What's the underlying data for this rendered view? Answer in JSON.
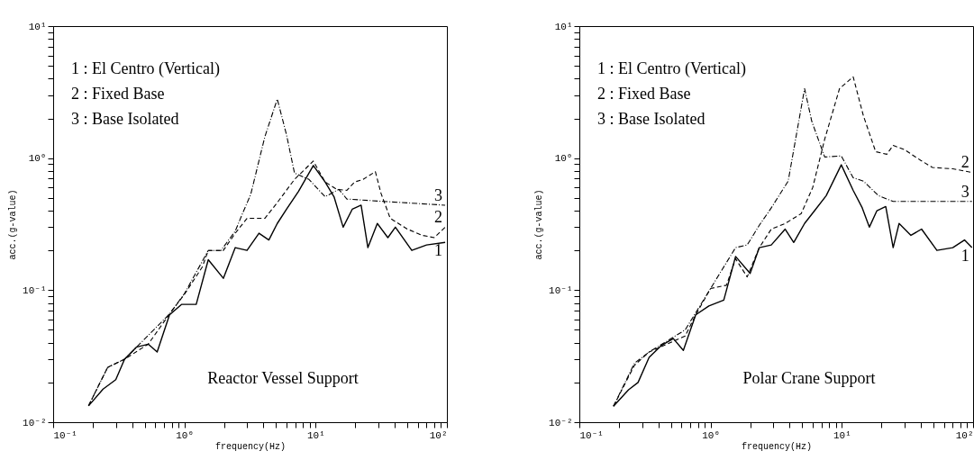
{
  "chart_data": [
    {
      "type": "line",
      "title": "Reactor Vessel Support",
      "xlabel": "frequency(Hz)",
      "ylabel": "acc.(g-value)",
      "log": "xy",
      "xlim": [
        0.1,
        100
      ],
      "ylim": [
        0.01,
        10
      ],
      "xticks": [
        {
          "value": 0.1,
          "label": "10⁻¹"
        },
        {
          "value": 0.2,
          "label": null
        },
        {
          "value": 0.3,
          "label": null
        },
        {
          "value": 0.4,
          "label": null
        },
        {
          "value": 0.5,
          "label": null
        },
        {
          "value": 0.6,
          "label": null
        },
        {
          "value": 0.7,
          "label": null
        },
        {
          "value": 0.8,
          "label": null
        },
        {
          "value": 0.9,
          "label": null
        },
        {
          "value": 1,
          "label": "10⁰"
        },
        {
          "value": 2,
          "label": null
        },
        {
          "value": 3,
          "label": null
        },
        {
          "value": 4,
          "label": null
        },
        {
          "value": 5,
          "label": null
        },
        {
          "value": 6,
          "label": null
        },
        {
          "value": 7,
          "label": null
        },
        {
          "value": 8,
          "label": null
        },
        {
          "value": 9,
          "label": null
        },
        {
          "value": 10,
          "label": "10¹"
        },
        {
          "value": 20,
          "label": null
        },
        {
          "value": 30,
          "label": null
        },
        {
          "value": 40,
          "label": null
        },
        {
          "value": 50,
          "label": null
        },
        {
          "value": 60,
          "label": null
        },
        {
          "value": 70,
          "label": null
        },
        {
          "value": 80,
          "label": null
        },
        {
          "value": 90,
          "label": null
        },
        {
          "value": 100,
          "label": "10²"
        }
      ],
      "yticks": [
        {
          "value": 0.01,
          "label": "10⁻²"
        },
        {
          "value": 0.02,
          "label": null
        },
        {
          "value": 0.03,
          "label": null
        },
        {
          "value": 0.04,
          "label": null
        },
        {
          "value": 0.05,
          "label": null
        },
        {
          "value": 0.06,
          "label": null
        },
        {
          "value": 0.07,
          "label": null
        },
        {
          "value": 0.08,
          "label": null
        },
        {
          "value": 0.09,
          "label": null
        },
        {
          "value": 0.1,
          "label": "10⁻¹"
        },
        {
          "value": 0.2,
          "label": null
        },
        {
          "value": 0.3,
          "label": null
        },
        {
          "value": 0.4,
          "label": null
        },
        {
          "value": 0.5,
          "label": null
        },
        {
          "value": 0.6,
          "label": null
        },
        {
          "value": 0.7,
          "label": null
        },
        {
          "value": 0.8,
          "label": null
        },
        {
          "value": 0.9,
          "label": null
        },
        {
          "value": 1,
          "label": "10⁰"
        },
        {
          "value": 2,
          "label": null
        },
        {
          "value": 3,
          "label": null
        },
        {
          "value": 4,
          "label": null
        },
        {
          "value": 5,
          "label": null
        },
        {
          "value": 6,
          "label": null
        },
        {
          "value": 7,
          "label": null
        },
        {
          "value": 8,
          "label": null
        },
        {
          "value": 9,
          "label": null
        },
        {
          "value": 10,
          "label": "10¹"
        }
      ],
      "series": [
        {
          "name": "1",
          "color": "#000000",
          "line_style": "solid",
          "x": [
            0.186,
            0.24,
            0.3,
            0.35,
            0.43,
            0.53,
            0.62,
            0.77,
            0.95,
            1.23,
            1.52,
            1.98,
            2.44,
            3.0,
            3.7,
            4.4,
            5.1,
            6.0,
            7.4,
            9.6,
            11.8,
            13.8,
            16.2,
            19,
            22.2,
            25,
            29.5,
            35.5,
            40.5,
            54,
            70,
            97
          ],
          "values": [
            0.0133,
            0.0178,
            0.021,
            0.03,
            0.037,
            0.039,
            0.034,
            0.065,
            0.078,
            0.078,
            0.17,
            0.123,
            0.21,
            0.2,
            0.27,
            0.24,
            0.32,
            0.41,
            0.56,
            0.88,
            0.66,
            0.51,
            0.3,
            0.41,
            0.44,
            0.21,
            0.32,
            0.25,
            0.3,
            0.2,
            0.22,
            0.23
          ]
        },
        {
          "name": "2",
          "color": "#000000",
          "line_style": "dashed",
          "x": [
            0.186,
            0.26,
            0.35,
            0.53,
            0.77,
            1.0,
            1.37,
            1.52,
            1.98,
            2.44,
            3.0,
            4.1,
            5.1,
            6.9,
            9.6,
            11.8,
            14.5,
            17.3,
            19.8,
            23,
            28.5,
            31.5,
            37,
            50,
            65,
            80,
            97
          ],
          "values": [
            0.0133,
            0.026,
            0.03,
            0.039,
            0.066,
            0.093,
            0.15,
            0.2,
            0.2,
            0.27,
            0.35,
            0.35,
            0.46,
            0.69,
            0.95,
            0.66,
            0.58,
            0.57,
            0.66,
            0.69,
            0.79,
            0.54,
            0.35,
            0.29,
            0.26,
            0.25,
            0.3
          ]
        },
        {
          "name": "3",
          "color": "#000000",
          "line_style": "dotted",
          "x": [
            0.186,
            0.26,
            0.35,
            0.77,
            1.0,
            1.52,
            1.9,
            2.44,
            2.8,
            3.2,
            4.1,
            5.1,
            6.0,
            6.9,
            8.9,
            11.8,
            15,
            17.3,
            33,
            97
          ],
          "values": [
            0.0133,
            0.026,
            0.03,
            0.066,
            0.094,
            0.2,
            0.2,
            0.28,
            0.39,
            0.53,
            1.45,
            2.8,
            1.5,
            0.77,
            0.69,
            0.51,
            0.58,
            0.49,
            0.47,
            0.44
          ]
        }
      ],
      "annotations": [
        "1 :  El Centro (Vertical)",
        "2 :  Fixed Base",
        "3 :  Base Isolated"
      ]
    },
    {
      "type": "line",
      "title": "Polar Crane Support",
      "xlabel": "frequency(Hz)",
      "ylabel": "acc.(g-value)",
      "log": "xy",
      "xlim": [
        0.1,
        100
      ],
      "ylim": [
        0.01,
        10
      ],
      "xticks": [
        {
          "value": 0.1,
          "label": "10⁻¹"
        },
        {
          "value": 0.2,
          "label": null
        },
        {
          "value": 0.3,
          "label": null
        },
        {
          "value": 0.4,
          "label": null
        },
        {
          "value": 0.5,
          "label": null
        },
        {
          "value": 0.6,
          "label": null
        },
        {
          "value": 0.7,
          "label": null
        },
        {
          "value": 0.8,
          "label": null
        },
        {
          "value": 0.9,
          "label": null
        },
        {
          "value": 1,
          "label": "10⁰"
        },
        {
          "value": 2,
          "label": null
        },
        {
          "value": 3,
          "label": null
        },
        {
          "value": 4,
          "label": null
        },
        {
          "value": 5,
          "label": null
        },
        {
          "value": 6,
          "label": null
        },
        {
          "value": 7,
          "label": null
        },
        {
          "value": 8,
          "label": null
        },
        {
          "value": 9,
          "label": null
        },
        {
          "value": 10,
          "label": "10¹"
        },
        {
          "value": 20,
          "label": null
        },
        {
          "value": 30,
          "label": null
        },
        {
          "value": 40,
          "label": null
        },
        {
          "value": 50,
          "label": null
        },
        {
          "value": 60,
          "label": null
        },
        {
          "value": 70,
          "label": null
        },
        {
          "value": 80,
          "label": null
        },
        {
          "value": 90,
          "label": null
        },
        {
          "value": 100,
          "label": "10²"
        }
      ],
      "yticks": [
        {
          "value": 0.01,
          "label": "10⁻²"
        },
        {
          "value": 0.02,
          "label": null
        },
        {
          "value": 0.03,
          "label": null
        },
        {
          "value": 0.04,
          "label": null
        },
        {
          "value": 0.05,
          "label": null
        },
        {
          "value": 0.06,
          "label": null
        },
        {
          "value": 0.07,
          "label": null
        },
        {
          "value": 0.08,
          "label": null
        },
        {
          "value": 0.09,
          "label": null
        },
        {
          "value": 0.1,
          "label": "10⁻¹"
        },
        {
          "value": 0.2,
          "label": null
        },
        {
          "value": 0.3,
          "label": null
        },
        {
          "value": 0.4,
          "label": null
        },
        {
          "value": 0.5,
          "label": null
        },
        {
          "value": 0.6,
          "label": null
        },
        {
          "value": 0.7,
          "label": null
        },
        {
          "value": 0.8,
          "label": null
        },
        {
          "value": 0.9,
          "label": null
        },
        {
          "value": 1,
          "label": "10⁰"
        },
        {
          "value": 2,
          "label": null
        },
        {
          "value": 3,
          "label": null
        },
        {
          "value": 4,
          "label": null
        },
        {
          "value": 5,
          "label": null
        },
        {
          "value": 6,
          "label": null
        },
        {
          "value": 7,
          "label": null
        },
        {
          "value": 8,
          "label": null
        },
        {
          "value": 9,
          "label": null
        },
        {
          "value": 10,
          "label": "10¹"
        }
      ],
      "series": [
        {
          "name": "1",
          "color": "#000000",
          "line_style": "solid",
          "x": [
            0.182,
            0.237,
            0.28,
            0.34,
            0.42,
            0.52,
            0.62,
            0.77,
            0.97,
            1.26,
            1.55,
            2.0,
            2.35,
            2.9,
            3.7,
            4.3,
            5.2,
            6.2,
            7.6,
            9.9,
            12.2,
            14.3,
            16.2,
            18.5,
            21.6,
            24.6,
            27.3,
            33.6,
            40.5,
            53,
            70,
            86,
            98
          ],
          "values": [
            0.0132,
            0.0176,
            0.02,
            0.031,
            0.038,
            0.043,
            0.035,
            0.065,
            0.076,
            0.084,
            0.18,
            0.134,
            0.21,
            0.22,
            0.29,
            0.23,
            0.32,
            0.4,
            0.52,
            0.89,
            0.57,
            0.42,
            0.3,
            0.4,
            0.43,
            0.21,
            0.32,
            0.26,
            0.29,
            0.2,
            0.21,
            0.24,
            0.21
          ]
        },
        {
          "name": "2",
          "color": "#000000",
          "line_style": "dashed",
          "x": [
            0.182,
            0.263,
            0.34,
            0.64,
            0.77,
            1.0,
            1.32,
            1.55,
            1.9,
            2.35,
            2.9,
            3.7,
            4.9,
            6.0,
            7.4,
            9.6,
            12.2,
            14.6,
            18.1,
            22,
            24.6,
            30,
            40,
            49,
            70,
            98
          ],
          "values": [
            0.0132,
            0.027,
            0.034,
            0.045,
            0.065,
            0.103,
            0.109,
            0.173,
            0.126,
            0.21,
            0.29,
            0.32,
            0.38,
            0.6,
            1.39,
            3.36,
            4.13,
            2.09,
            1.12,
            1.07,
            1.25,
            1.16,
            0.96,
            0.85,
            0.83,
            0.78
          ]
        },
        {
          "name": "3",
          "color": "#000000",
          "line_style": "dotted",
          "x": [
            0.182,
            0.263,
            0.34,
            0.64,
            1.0,
            1.55,
            1.9,
            2.35,
            2.9,
            3.9,
            5.2,
            5.9,
            7.4,
            9.9,
            12.2,
            14.6,
            19,
            24.6,
            98
          ],
          "values": [
            0.0132,
            0.028,
            0.034,
            0.05,
            0.103,
            0.21,
            0.22,
            0.31,
            0.42,
            0.67,
            3.36,
            1.9,
            1.02,
            1.04,
            0.71,
            0.67,
            0.52,
            0.47,
            0.47
          ]
        }
      ],
      "annotations": [
        "1 :  El Centro (Vertical)",
        "2 :  Fixed Base",
        "3 :  Base Isolated"
      ]
    }
  ]
}
